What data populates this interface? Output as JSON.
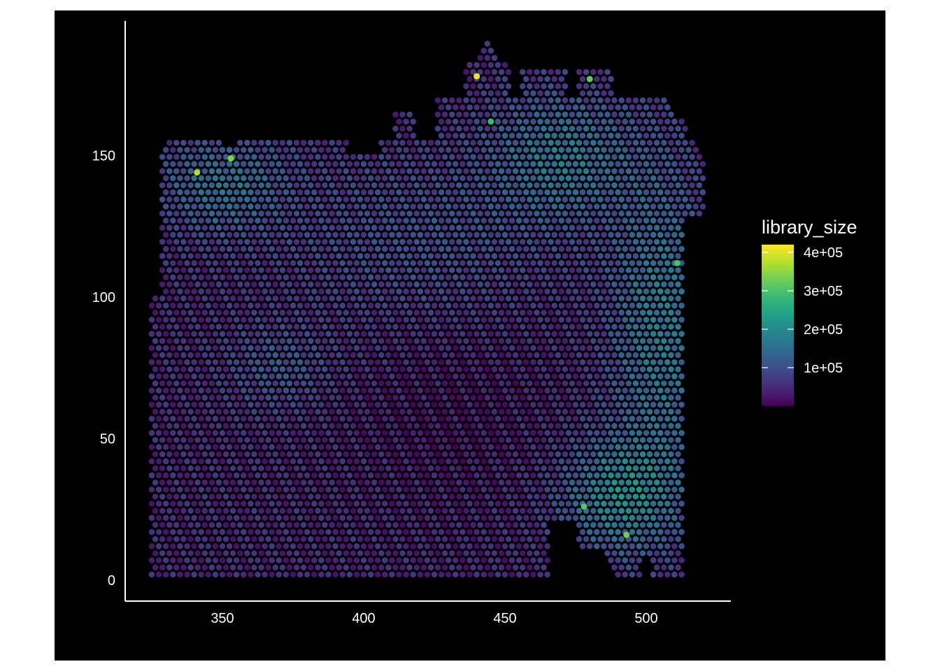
{
  "chart_data": {
    "type": "scatter",
    "title": "",
    "xlabel": "",
    "ylabel": "",
    "xlim": [
      318,
      532
    ],
    "ylim": [
      -8,
      197
    ],
    "x_ticks": [
      350,
      400,
      450,
      500
    ],
    "x_tick_labels": [
      "350",
      "400",
      "450",
      "500"
    ],
    "y_ticks": [
      0,
      50,
      100,
      150
    ],
    "y_tick_labels": [
      "0",
      "50",
      "100",
      "150"
    ],
    "background": "#000000",
    "axis_color": "#ffffff",
    "grid": false,
    "point_shape": "circle",
    "spot_grid": {
      "description": "hexagonal spot array, library_size per spot",
      "x_range": [
        325,
        520
      ],
      "y_range": [
        2,
        190
      ],
      "row_step": 2.5,
      "col_step": 2.5
    },
    "color_scale": {
      "name": "viridis",
      "variable": "library_size",
      "min": 0,
      "max": 420000,
      "stops": [
        "#440154",
        "#482878",
        "#3e4a89",
        "#31688e",
        "#26828e",
        "#1f9e89",
        "#35b779",
        "#6dcd59",
        "#b4de2c",
        "#fde725"
      ]
    },
    "legend": {
      "title": "library_size",
      "placement": "right",
      "ticks": [
        400000,
        300000,
        200000,
        100000
      ],
      "tick_labels": [
        "4e+05",
        "3e+05",
        "2e+05",
        "1e+05"
      ]
    },
    "highlights": [
      {
        "x": 440,
        "y": 178,
        "value": 410000
      },
      {
        "x": 341,
        "y": 144,
        "value": 370000
      },
      {
        "x": 353,
        "y": 149,
        "value": 340000
      },
      {
        "x": 480,
        "y": 177,
        "value": 320000
      },
      {
        "x": 493,
        "y": 16,
        "value": 330000
      },
      {
        "x": 478,
        "y": 26,
        "value": 310000
      },
      {
        "x": 511,
        "y": 112,
        "value": 300000
      },
      {
        "x": 445,
        "y": 162,
        "value": 280000
      }
    ]
  }
}
